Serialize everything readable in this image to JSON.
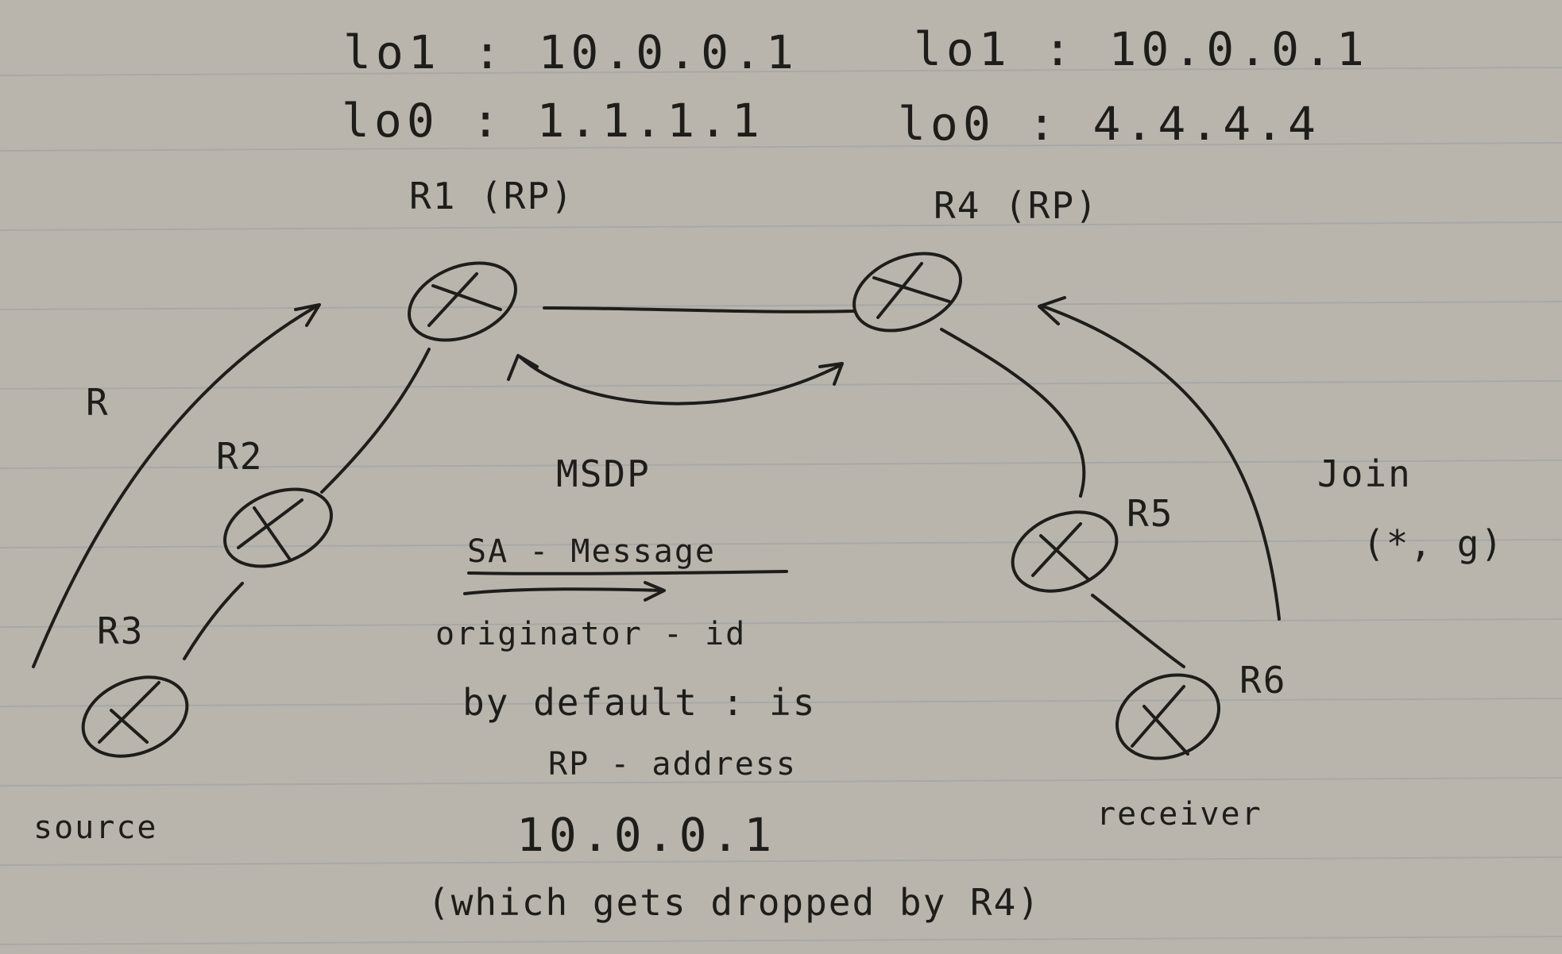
{
  "paper": {
    "background": "#b9b5ac",
    "rule_line_color": "#9ea0a3",
    "ink_color": "#1f1d1a"
  },
  "r1": {
    "lo1": "lo1 : 10.0.0.1",
    "lo0": "lo0 : 1.1.1.1",
    "name": "R1 (RP)"
  },
  "r4": {
    "lo1": "lo1 : 10.0.0.1",
    "lo0": "lo0 : 4.4.4.4",
    "name": "R4 (RP)"
  },
  "routers": {
    "r2": "R2",
    "r3": "R3",
    "r5": "R5",
    "r6": "R6"
  },
  "arrows": {
    "register": "R",
    "join": "Join",
    "join_sg": "(*, g)"
  },
  "nodes": {
    "source": "source",
    "receiver": "receiver"
  },
  "note": {
    "protocol": "MSDP",
    "sa_message": "SA - Message",
    "originator_id": "originator - id",
    "default_line": "by default : is",
    "rp_address": "RP - address",
    "address": "10.0.0.1",
    "dropped": "(which gets dropped by R4)"
  },
  "icons": [
    "router-icon",
    "arrow-icon"
  ]
}
